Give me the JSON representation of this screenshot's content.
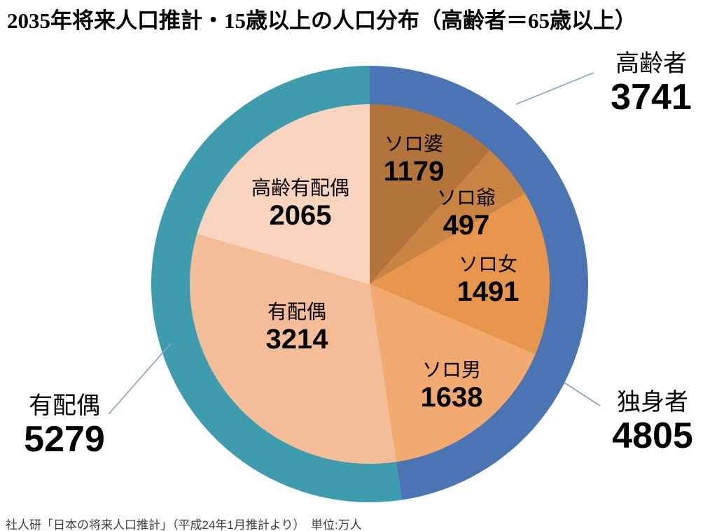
{
  "title": "2035年将来人口推計・15歳以上の人口分布（高齢者＝65歳以上）",
  "source_note": "社人研「日本の将来人口推計」（平成24年1月推計より）　単位:万人",
  "chart_data": {
    "type": "pie",
    "title": "2035年将来人口推計・15歳以上の人口分布（高齢者＝65歳以上）",
    "unit": "万人",
    "total": 10084,
    "direction": "clockwise",
    "start_angle_deg": 0,
    "inner_segments": [
      {
        "id": "solo-baa",
        "label": "ソロ婆",
        "value": 1179,
        "color": "#b3743c"
      },
      {
        "id": "solo-jii",
        "label": "ソロ爺",
        "value": 497,
        "color": "#c98443"
      },
      {
        "id": "solo-onna",
        "label": "ソロ女",
        "value": 1491,
        "color": "#e6954a"
      },
      {
        "id": "solo-otoko",
        "label": "ソロ男",
        "value": 1638,
        "color": "#f3aa70"
      },
      {
        "id": "yuhaigu",
        "label": "有配偶",
        "value": 3214,
        "color": "#f4bc97"
      },
      {
        "id": "korei-yuhaigu",
        "label": "高齢有配偶",
        "value": 2065,
        "color": "#f8d4bf"
      }
    ],
    "outer_ring": [
      {
        "id": "dokushinsha",
        "label": "独身者",
        "value": 4805,
        "color": "#4a74b3"
      },
      {
        "id": "yuhaigu",
        "label": "有配偶",
        "value": 5279,
        "color": "#3e9cae"
      }
    ],
    "callouts": [
      {
        "id": "koreisha",
        "label": "高齢者",
        "value": 3741
      },
      {
        "id": "dokushinsha",
        "label": "独身者",
        "value": 4805
      },
      {
        "id": "yuhaigu",
        "label": "有配偶",
        "value": 5279
      }
    ]
  }
}
